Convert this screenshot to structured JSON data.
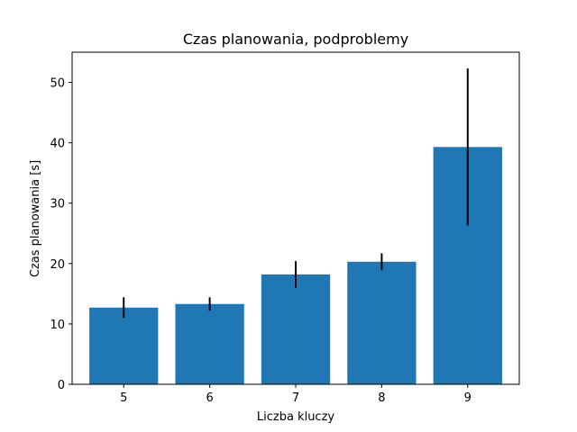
{
  "chart_data": {
    "type": "bar",
    "title": "Czas planowania, podproblemy",
    "xlabel": "Liczba kluczy",
    "ylabel": "Czas planowania [s]",
    "categories": [
      "5",
      "6",
      "7",
      "8",
      "9"
    ],
    "values": [
      12.7,
      13.3,
      18.2,
      20.3,
      39.3
    ],
    "errors": [
      1.7,
      1.1,
      2.2,
      1.4,
      13.0
    ],
    "ylim": [
      0,
      55
    ],
    "yticks": [
      "0",
      "10",
      "20",
      "30",
      "40",
      "50"
    ],
    "grid": false,
    "bar_color": "#1f77b4",
    "error_color": "#000000"
  }
}
